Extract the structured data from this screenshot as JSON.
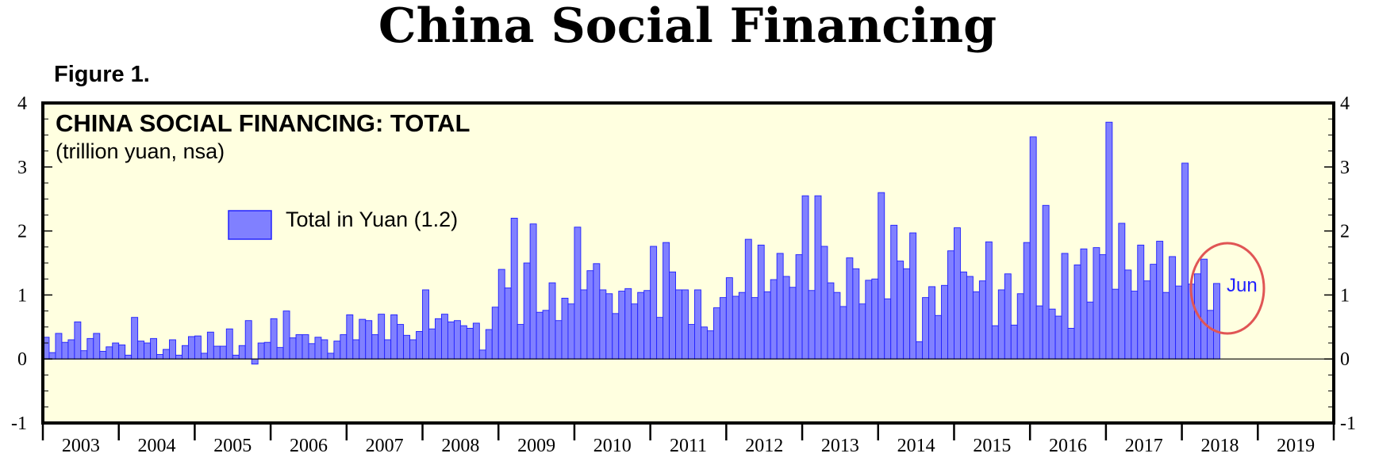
{
  "page_title": "China Social Financing",
  "figure_label": "Figure 1.",
  "chart_data": {
    "type": "bar",
    "title": "CHINA SOCIAL FINANCING: TOTAL",
    "subtitle": "(trillion yuan, nsa)",
    "legend": {
      "label": "Total in Yuan (1.2)",
      "position": "upper-left"
    },
    "series": [
      {
        "name": "Total in Yuan (1.2)",
        "color": "#8080ff"
      }
    ],
    "frequency": "monthly",
    "start": "2003-01",
    "end": "2018-06",
    "years": [
      "2003",
      "2004",
      "2005",
      "2006",
      "2007",
      "2008",
      "2009",
      "2010",
      "2011",
      "2012",
      "2013",
      "2014",
      "2015",
      "2016",
      "2017",
      "2018",
      "2019"
    ],
    "ylim": [
      -1,
      4
    ],
    "yticks": [
      "-1",
      "0",
      "1",
      "2",
      "3",
      "4"
    ],
    "values": [
      0.34,
      0.1,
      0.4,
      0.26,
      0.3,
      0.58,
      0.13,
      0.32,
      0.4,
      0.12,
      0.19,
      0.25,
      0.22,
      0.06,
      0.65,
      0.28,
      0.25,
      0.32,
      0.07,
      0.15,
      0.3,
      0.06,
      0.21,
      0.35,
      0.36,
      0.09,
      0.42,
      0.2,
      0.2,
      0.47,
      0.06,
      0.21,
      0.6,
      -0.08,
      0.25,
      0.26,
      0.63,
      0.18,
      0.75,
      0.33,
      0.38,
      0.38,
      0.24,
      0.34,
      0.3,
      0.09,
      0.28,
      0.38,
      0.69,
      0.3,
      0.62,
      0.6,
      0.38,
      0.7,
      0.3,
      0.69,
      0.54,
      0.37,
      0.3,
      0.43,
      1.08,
      0.47,
      0.63,
      0.7,
      0.58,
      0.6,
      0.52,
      0.48,
      0.56,
      0.14,
      0.46,
      0.81,
      1.4,
      1.11,
      2.2,
      0.54,
      1.5,
      2.11,
      0.73,
      0.76,
      1.19,
      0.6,
      0.95,
      0.86,
      2.06,
      1.08,
      1.38,
      1.49,
      1.08,
      1.02,
      0.71,
      1.06,
      1.1,
      0.86,
      1.04,
      1.07,
      1.76,
      0.65,
      1.82,
      1.36,
      1.08,
      1.08,
      0.54,
      1.08,
      0.5,
      0.44,
      0.8,
      0.96,
      1.27,
      0.98,
      1.04,
      1.87,
      0.96,
      1.78,
      1.05,
      1.24,
      1.65,
      1.29,
      1.12,
      1.63,
      2.55,
      1.07,
      2.55,
      1.76,
      1.19,
      1.04,
      0.82,
      1.58,
      1.41,
      0.86,
      1.23,
      1.25,
      2.6,
      0.94,
      2.09,
      1.53,
      1.41,
      1.97,
      0.27,
      0.96,
      1.13,
      0.68,
      1.15,
      1.69,
      2.05,
      1.36,
      1.29,
      1.05,
      1.22,
      1.83,
      0.52,
      1.08,
      1.33,
      0.53,
      1.02,
      1.82,
      3.47,
      0.83,
      2.4,
      0.78,
      0.67,
      1.65,
      0.48,
      1.47,
      1.72,
      0.89,
      1.74,
      1.63,
      3.7,
      1.09,
      2.12,
      1.39,
      1.06,
      1.78,
      1.22,
      1.48,
      1.84,
      1.04,
      1.6,
      1.14,
      3.06,
      1.17,
      1.33,
      1.56,
      0.76,
      1.18
    ],
    "annotation": {
      "text": "Jun",
      "style": "red circle around latest bars"
    }
  }
}
